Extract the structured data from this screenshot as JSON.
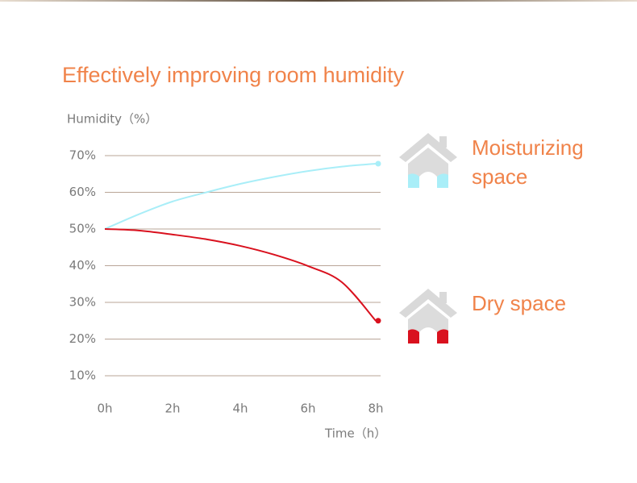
{
  "chart_data": {
    "type": "line",
    "title": "Effectively improving room humidity",
    "y_label": "Humidity（%）",
    "x_label": "Time（h）",
    "x": [
      0,
      1,
      2,
      3,
      4,
      5,
      6,
      7,
      8
    ],
    "xlim": [
      0,
      8
    ],
    "xticks": [
      {
        "value": 0,
        "label": "0h"
      },
      {
        "value": 2,
        "label": "2h"
      },
      {
        "value": 4,
        "label": "4h"
      },
      {
        "value": 6,
        "label": "6h"
      },
      {
        "value": 8,
        "label": "8h"
      }
    ],
    "ylim": [
      10,
      70
    ],
    "yticks": [
      {
        "value": 10,
        "label": "10%"
      },
      {
        "value": 20,
        "label": "20%"
      },
      {
        "value": 30,
        "label": "30%"
      },
      {
        "value": 40,
        "label": "40%"
      },
      {
        "value": 50,
        "label": "50%"
      },
      {
        "value": 60,
        "label": "60%"
      },
      {
        "value": 70,
        "label": "70%"
      }
    ],
    "grid": true,
    "series": [
      {
        "name": "Moisturizing space",
        "color": "#a9eef8",
        "values": [
          50,
          54,
          57.5,
          60,
          62.3,
          64.2,
          65.8,
          67,
          67.8
        ]
      },
      {
        "name": "Dry space",
        "color": "#d9111e",
        "values": [
          50,
          49.6,
          48.5,
          47.2,
          45.4,
          43,
          39.9,
          35.5,
          25
        ]
      }
    ]
  }
}
